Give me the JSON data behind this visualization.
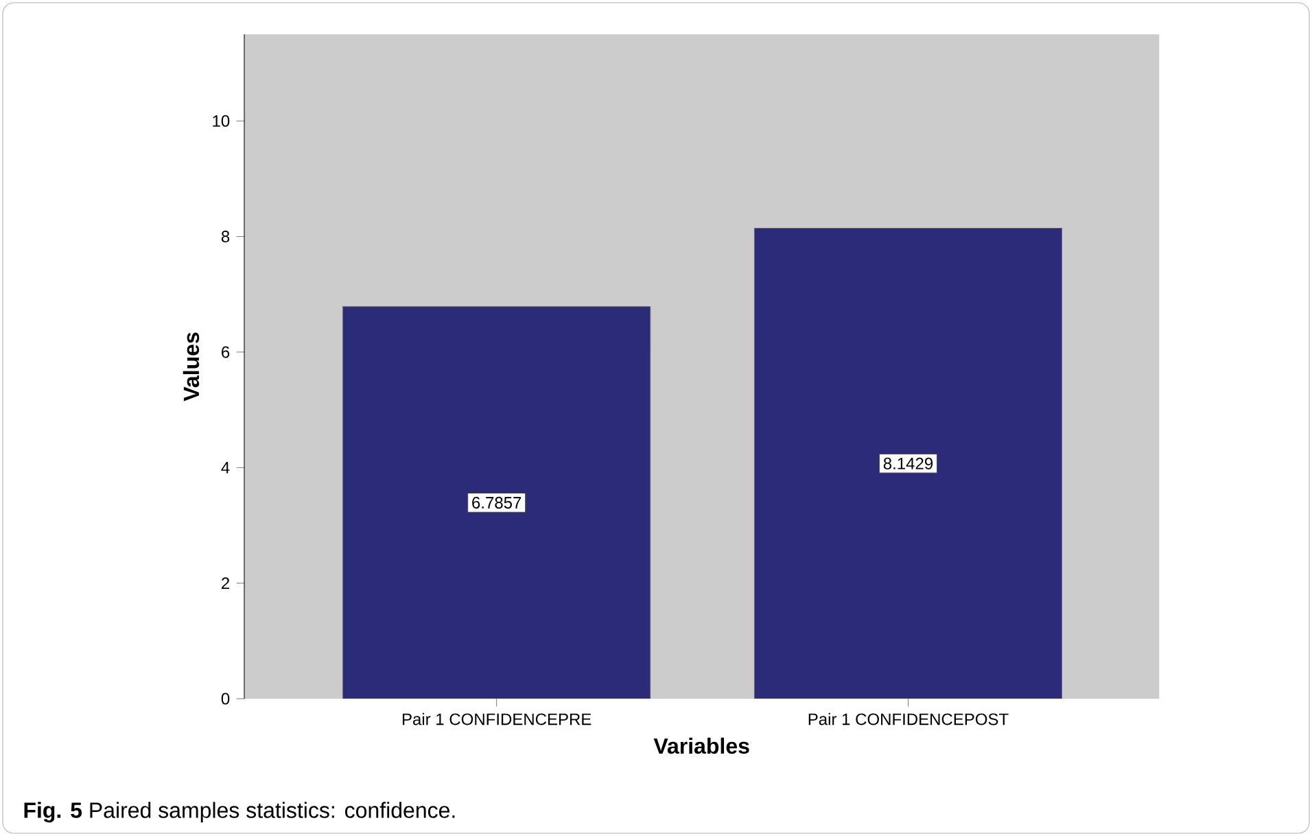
{
  "chart_data": {
    "type": "bar",
    "xlabel": "Variables",
    "ylabel": "Values",
    "categories": [
      "Pair 1 CONFIDENCEPRE",
      "Pair 1 CONFIDENCEPOST"
    ],
    "values": [
      6.7857,
      8.1429
    ],
    "value_labels": [
      "6.7857",
      "8.1429"
    ],
    "color": "#2b2b7a",
    "ylim": [
      0,
      11.5
    ],
    "yticks": [
      0,
      2,
      4,
      6,
      8,
      10
    ],
    "grid": false,
    "annotations": [
      "**Fig. 5** Paired samples statistics: confidence."
    ]
  }
}
